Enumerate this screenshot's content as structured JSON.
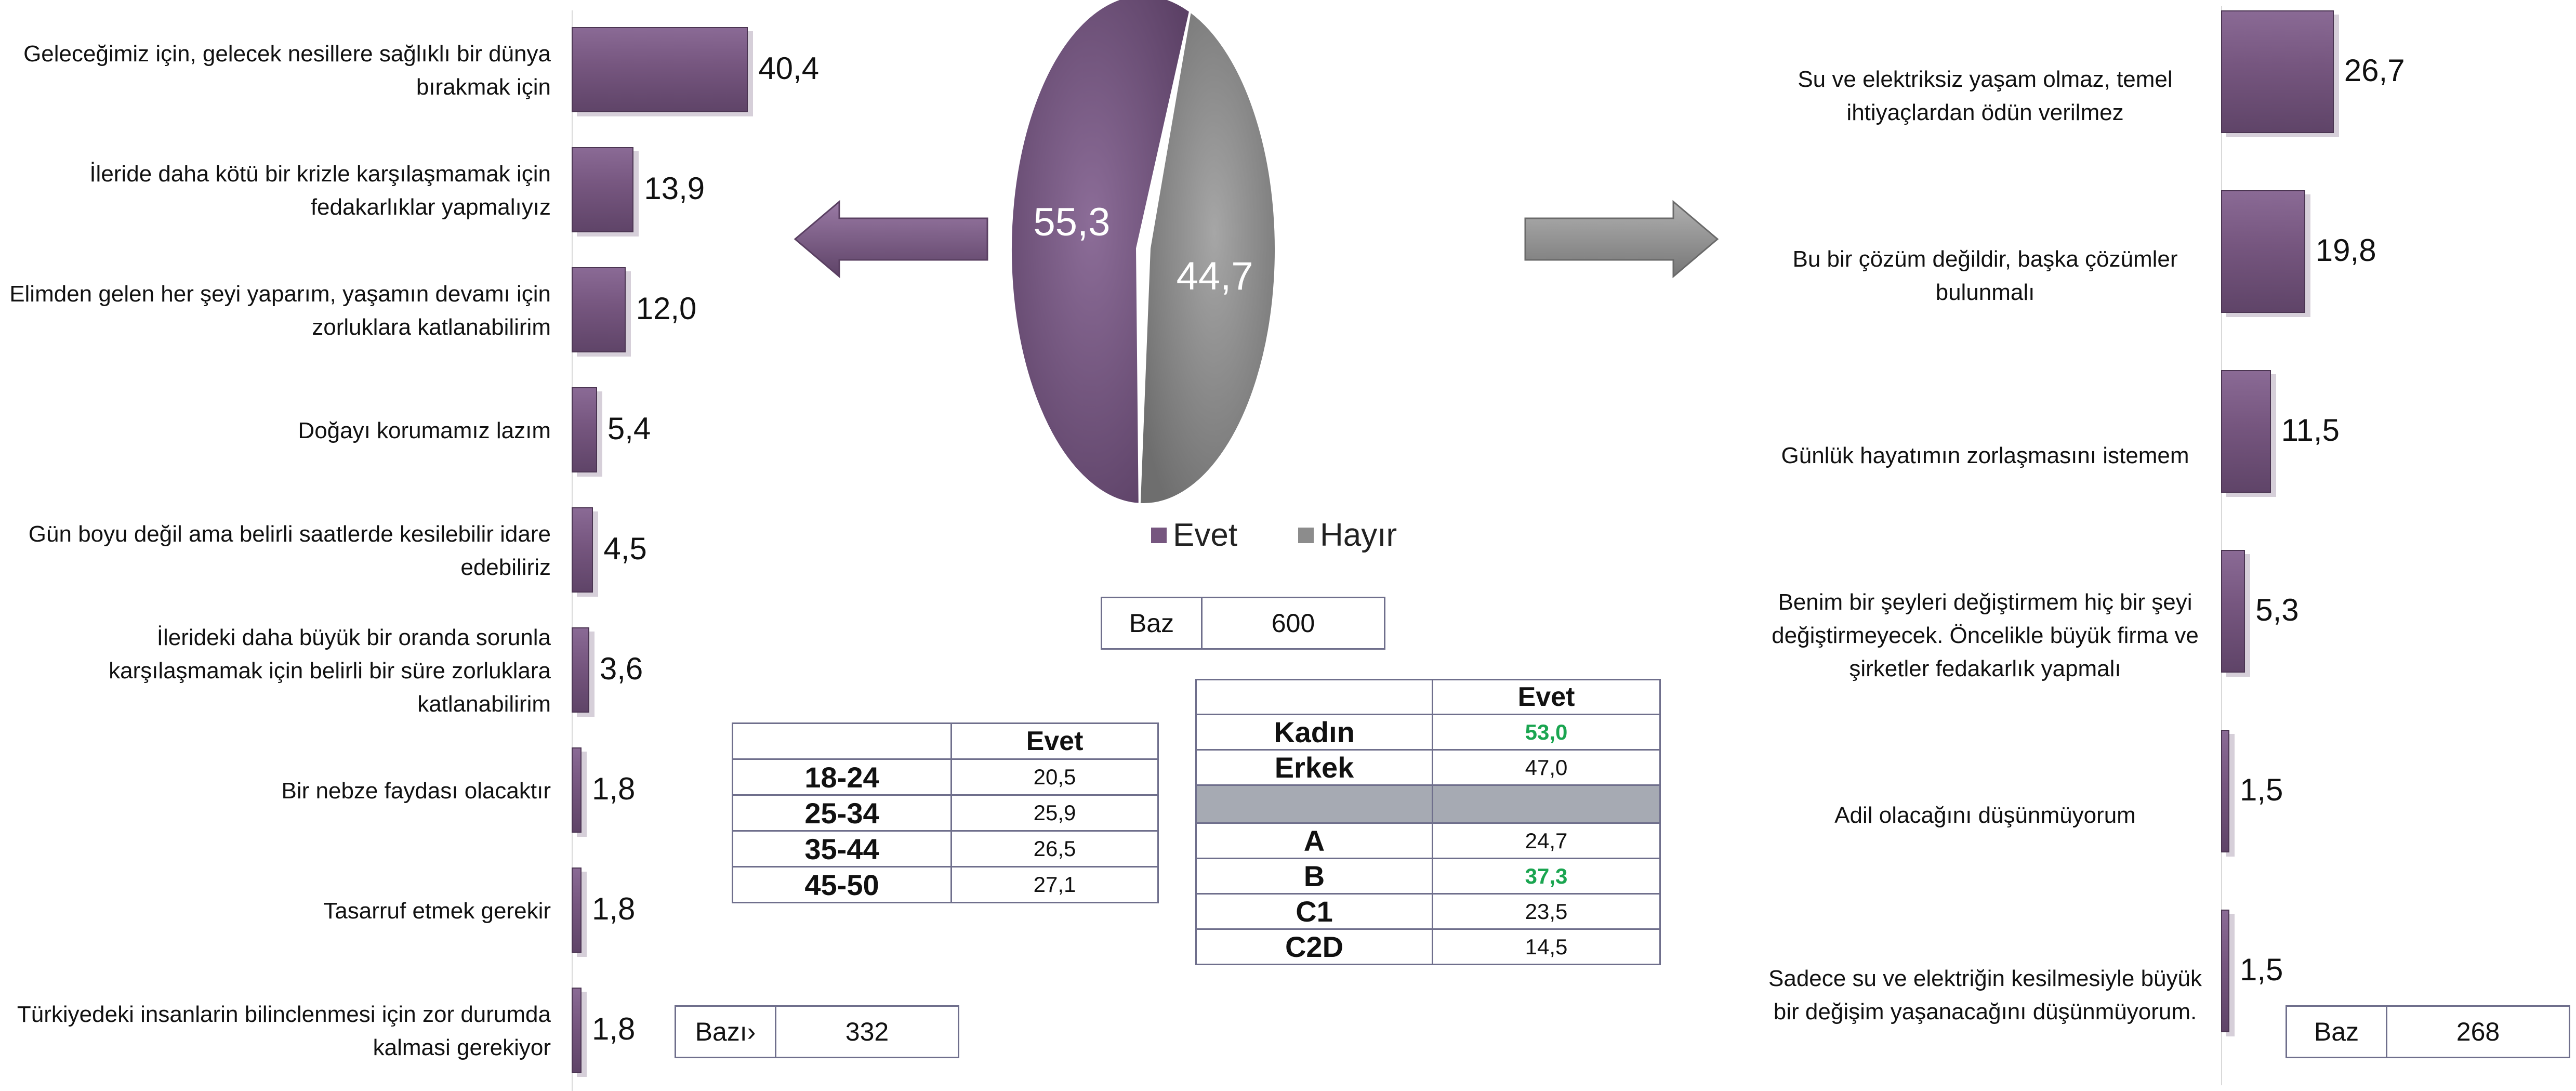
{
  "chart_data": [
    {
      "type": "pie",
      "labels": [
        "Evet",
        "Hayır"
      ],
      "values": [
        55.3,
        44.7
      ],
      "value_labels": [
        "55,3",
        "44,7"
      ],
      "colors": [
        "#76567f",
        "#8c8c8c"
      ],
      "legend": [
        {
          "label": "Evet",
          "color": "#76567f"
        },
        {
          "label": "Hayır",
          "color": "#8c8c8c"
        }
      ],
      "legend_position": "bottom"
    },
    {
      "type": "bar",
      "orientation": "horizontal",
      "categories": [
        "Geleceğimiz için, gelecek nesillere sağlıklı bir dünya bırakmak için",
        "İleride daha kötü bir krizle karşılaşmamak için fedakarlıklar yapmalıyız",
        "Elimden gelen her şeyi yaparım, yaşamın devamı için zorluklara katlanabilirim",
        "Doğayı korumamız lazım",
        "Gün boyu değil ama belirli saatlerde kesilebilir idare edebiliriz",
        "İlerideki daha büyük bir oranda sorunla karşılaşmamak için belirli bir süre zorluklara katlanabilirim",
        "Bir nebze faydası olacaktır",
        "Tasarruf etmek gerekir",
        "Türkiyedeki insanlarin bilinclenmesi için zor durumda kalmasi gerekiyor"
      ],
      "values": [
        40.4,
        13.9,
        12.0,
        5.4,
        4.5,
        3.6,
        1.8,
        1.8,
        1.8
      ],
      "value_labels": [
        "40,4",
        "13,9",
        "12,0",
        "5,4",
        "4,5",
        "3,6",
        "1,8",
        "1,8",
        "1,8"
      ],
      "color": "#76567f",
      "xlim": [
        0,
        50
      ]
    },
    {
      "type": "bar",
      "orientation": "horizontal",
      "categories": [
        "Su ve elektriksiz yaşam olmaz, temel ihtiyaçlardan ödün verilmez",
        "Bu bir çözüm değildir, başka çözümler bulunmalı",
        "Günlük hayatımın zorlaşmasını istemem",
        "Benim bir şeyleri değiştirmem hiç bir şeyi değiştirmeyecek. Öncelikle büyük firma ve şirketler fedakarlık yapmalı",
        "Adil olacağını düşünmüyorum",
        "Sadece su ve elektriğin kesilmesiyle büyük bir değişim yaşanacağını düşünmüyorum."
      ],
      "values": [
        26.7,
        19.8,
        11.5,
        5.3,
        1.5,
        1.5
      ],
      "value_labels": [
        "26,7",
        "19,8",
        "11,5",
        "5,3",
        "1,5",
        "1,5"
      ],
      "color": "#76567f",
      "xlim": [
        0,
        33
      ]
    }
  ],
  "baz_main": {
    "label": "Baz",
    "value": "600"
  },
  "baz_left": {
    "label": "Bazı›",
    "value": "332"
  },
  "baz_right": {
    "label": "Baz",
    "value": "268"
  },
  "age_table": {
    "header": "Evet",
    "rows": [
      {
        "label": "18-24",
        "value": "20,5"
      },
      {
        "label": "25-34",
        "value": "25,9"
      },
      {
        "label": "35-44",
        "value": "26,5"
      },
      {
        "label": "45-50",
        "value": "27,1"
      }
    ]
  },
  "demo_table": {
    "header": "Evet",
    "gender": [
      {
        "label": "Kadın",
        "value": "53,0",
        "highlight": true
      },
      {
        "label": "Erkek",
        "value": "47,0",
        "highlight": false
      }
    ],
    "ses": [
      {
        "label": "A",
        "value": "24,7",
        "highlight": false
      },
      {
        "label": "B",
        "value": "37,3",
        "highlight": true
      },
      {
        "label": "C1",
        "value": "23,5",
        "highlight": false
      },
      {
        "label": "C2D",
        "value": "14,5",
        "highlight": false
      }
    ]
  },
  "colors": {
    "evet": "#76567f",
    "hayir": "#8c8c8c",
    "highlight": "#1aa550"
  }
}
